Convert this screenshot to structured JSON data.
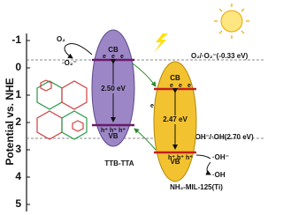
{
  "axis": {
    "title": "Potential vs. NHE",
    "ticks": [
      "-1",
      "0",
      "1",
      "2",
      "3",
      "4",
      "5"
    ]
  },
  "materials": [
    {
      "name": "TTB-TTA",
      "cb": "CB",
      "vb": "VB",
      "gap": "2.50 eV"
    },
    {
      "name": "NH₂-MIL-125(Ti)",
      "cb": "CB",
      "vb": "VB",
      "gap": "2.47 eV"
    }
  ],
  "levels": [
    {
      "label": "O₂/·O₂⁻(-0.33 eV)"
    },
    {
      "label": "·OH⁻/·OH(2.70 eV)"
    }
  ],
  "species": {
    "o2": "O₂",
    "superoxide": "·O₂⁻",
    "hydroxide": "·OH⁻",
    "hydroxyl": "·OH"
  },
  "carriers": {
    "electron": "e",
    "hole": "h⁺"
  }
}
